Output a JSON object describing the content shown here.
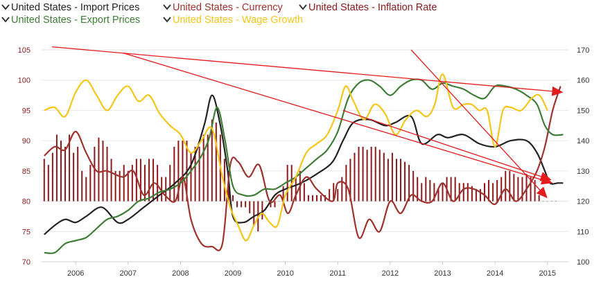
{
  "colors": {
    "import": "#222222",
    "currency": "#a0322e",
    "inflation": "#8b1a1a",
    "export": "#3e7d36",
    "wage": "#f5c518",
    "arrow": "#e41a1c",
    "axis_text_left": "#8b1a1a",
    "axis_text": "#333333",
    "grid": "#e6e6e6"
  },
  "legend": [
    {
      "key": "import",
      "label": "United States - Import Prices",
      "icon": "chevron-down-icon"
    },
    {
      "key": "currency",
      "label": "United States - Currency",
      "icon": "chevron-down-icon"
    },
    {
      "key": "inflation",
      "label": "United States - Inflation Rate",
      "icon": "chevron-down-icon"
    },
    {
      "key": "export",
      "label": "United States - Export Prices",
      "icon": "chevron-down-icon"
    },
    {
      "key": "wage",
      "label": "United States - Wage Growth",
      "icon": "chevron-down-icon"
    }
  ],
  "chart_data": {
    "type": "line",
    "grid": true,
    "legend_position": "top-left",
    "x_range": [
      2005.35,
      2015.4
    ],
    "x_ticks": [
      "2006",
      "2007",
      "2008",
      "2009",
      "2010",
      "2011",
      "2012",
      "2013",
      "2014",
      "2015"
    ],
    "y_left": {
      "range": [
        70,
        105
      ],
      "ticks": [
        "70",
        "75",
        "80",
        "85",
        "90",
        "95",
        "100",
        "105"
      ]
    },
    "y_right": {
      "range": [
        100,
        170
      ],
      "ticks": [
        "100",
        "110",
        "120",
        "130",
        "140",
        "150",
        "160",
        "170"
      ]
    },
    "series": [
      {
        "name": "United States - Import Prices",
        "key": "import",
        "axis": "right",
        "type": "line",
        "x": [
          2005.4,
          2005.6,
          2005.8,
          2006.0,
          2006.2,
          2006.5,
          2006.8,
          2007.0,
          2007.3,
          2007.6,
          2007.9,
          2008.2,
          2008.45,
          2008.6,
          2008.75,
          2008.9,
          2009.0,
          2009.2,
          2009.4,
          2009.6,
          2009.8,
          2010.0,
          2010.3,
          2010.6,
          2010.9,
          2011.1,
          2011.3,
          2011.6,
          2011.9,
          2012.1,
          2012.4,
          2012.6,
          2012.9,
          2013.1,
          2013.4,
          2013.7,
          2014.0,
          2014.3,
          2014.6,
          2014.8,
          2014.95,
          2015.05,
          2015.2,
          2015.3
        ],
        "y": [
          109,
          112,
          114,
          113,
          115,
          118,
          113,
          114,
          118,
          122,
          126,
          132,
          145,
          155,
          146,
          130,
          115,
          113,
          115,
          117,
          122,
          124,
          126,
          129,
          133,
          140,
          146,
          147,
          145,
          146,
          148,
          139,
          142,
          141,
          142,
          139,
          138,
          140,
          140,
          136,
          130,
          126,
          126,
          126
        ]
      },
      {
        "name": "United States - Currency",
        "key": "currency",
        "axis": "left",
        "type": "line",
        "x": [
          2005.4,
          2005.6,
          2005.8,
          2006.0,
          2006.2,
          2006.4,
          2006.6,
          2006.9,
          2007.1,
          2007.3,
          2007.5,
          2007.7,
          2007.9,
          2008.05,
          2008.2,
          2008.4,
          2008.6,
          2008.8,
          2008.95,
          2009.1,
          2009.3,
          2009.5,
          2009.7,
          2009.9,
          2010.05,
          2010.2,
          2010.4,
          2010.6,
          2010.9,
          2011.0,
          2011.2,
          2011.4,
          2011.6,
          2011.8,
          2012.0,
          2012.2,
          2012.4,
          2012.6,
          2012.8,
          2013.0,
          2013.2,
          2013.4,
          2013.6,
          2013.8,
          2014.0,
          2014.2,
          2014.4,
          2014.6,
          2014.8,
          2014.95,
          2015.1,
          2015.25
        ],
        "y": [
          87.5,
          89,
          88.5,
          91.5,
          88,
          85,
          85,
          84,
          85,
          81,
          83,
          81,
          80,
          84,
          77,
          73,
          72.5,
          73,
          86,
          86.5,
          84,
          86,
          80,
          81,
          78,
          81,
          84,
          82,
          80,
          83,
          82,
          74,
          77,
          75,
          80,
          78,
          81,
          80,
          80,
          83,
          80,
          82,
          82,
          81,
          79.5,
          82,
          80,
          82,
          85,
          89,
          95,
          99
        ]
      },
      {
        "name": "United States - Inflation Rate",
        "key": "inflation",
        "axis": "left",
        "type": "bar",
        "x": [
          2005.4,
          2005.48,
          2005.56,
          2005.64,
          2005.72,
          2005.8,
          2005.88,
          2005.96,
          2006.04,
          2006.12,
          2006.2,
          2006.28,
          2006.36,
          2006.44,
          2006.52,
          2006.6,
          2006.68,
          2006.76,
          2006.84,
          2006.92,
          2007.0,
          2007.08,
          2007.16,
          2007.24,
          2007.32,
          2007.4,
          2007.48,
          2007.56,
          2007.64,
          2007.72,
          2007.8,
          2007.88,
          2007.96,
          2008.04,
          2008.12,
          2008.2,
          2008.28,
          2008.36,
          2008.44,
          2008.52,
          2008.6,
          2008.68,
          2008.76,
          2008.84,
          2008.92,
          2009.0,
          2009.08,
          2009.16,
          2009.24,
          2009.32,
          2009.4,
          2009.48,
          2009.56,
          2009.64,
          2009.72,
          2009.8,
          2009.88,
          2009.96,
          2010.04,
          2010.12,
          2010.2,
          2010.28,
          2010.36,
          2010.44,
          2010.52,
          2010.6,
          2010.68,
          2010.76,
          2010.84,
          2010.92,
          2011.0,
          2011.08,
          2011.16,
          2011.24,
          2011.32,
          2011.4,
          2011.48,
          2011.56,
          2011.64,
          2011.72,
          2011.8,
          2011.88,
          2011.96,
          2012.04,
          2012.12,
          2012.2,
          2012.28,
          2012.36,
          2012.44,
          2012.52,
          2012.6,
          2012.68,
          2012.76,
          2012.84,
          2012.92,
          2013.0,
          2013.08,
          2013.16,
          2013.24,
          2013.32,
          2013.4,
          2013.48,
          2013.56,
          2013.64,
          2013.72,
          2013.8,
          2013.88,
          2013.96,
          2014.04,
          2014.12,
          2014.2,
          2014.28,
          2014.36,
          2014.44,
          2014.52,
          2014.6,
          2014.68,
          2014.76,
          2014.84,
          2014.92,
          2015.0,
          2015.08,
          2015.16
        ],
        "y": [
          87,
          86,
          88,
          91,
          90,
          89,
          91,
          88,
          89,
          85,
          84,
          86,
          89,
          90.5,
          90,
          89,
          87,
          85,
          85,
          86,
          85,
          86,
          87,
          87,
          86,
          87,
          87,
          86,
          84,
          84,
          86,
          89,
          90,
          90,
          90,
          88,
          89,
          89,
          91,
          91,
          93.5,
          93,
          91,
          87,
          85,
          81,
          79,
          79,
          79,
          78,
          76,
          75,
          77,
          80,
          79,
          79,
          80,
          82.5,
          86,
          86,
          84,
          85,
          83,
          81,
          81,
          81,
          81,
          81,
          82,
          83,
          82,
          84,
          86,
          87,
          88,
          89,
          89,
          88.5,
          89,
          89,
          88.5,
          88,
          87,
          88,
          87,
          87,
          86.5,
          86,
          85,
          84,
          83,
          84,
          83.5,
          83,
          82,
          83,
          84,
          84,
          84,
          83,
          83,
          83,
          82.5,
          82,
          82,
          83,
          83.5,
          83,
          83.5,
          84,
          85,
          85,
          84.5,
          84,
          84,
          84.5,
          84,
          83.5,
          81,
          80,
          80,
          80,
          80
        ]
      },
      {
        "name": "United States - Export Prices",
        "key": "export",
        "axis": "right",
        "type": "line",
        "x": [
          2005.4,
          2005.6,
          2005.8,
          2006.0,
          2006.2,
          2006.4,
          2006.6,
          2006.8,
          2007.0,
          2007.2,
          2007.4,
          2007.6,
          2007.8,
          2008.0,
          2008.2,
          2008.4,
          2008.55,
          2008.7,
          2008.85,
          2009.0,
          2009.2,
          2009.4,
          2009.6,
          2009.8,
          2010.0,
          2010.2,
          2010.4,
          2010.6,
          2010.8,
          2011.0,
          2011.2,
          2011.4,
          2011.6,
          2011.8,
          2012.0,
          2012.2,
          2012.4,
          2012.6,
          2012.8,
          2013.0,
          2013.2,
          2013.4,
          2013.6,
          2013.8,
          2014.0,
          2014.2,
          2014.4,
          2014.6,
          2014.8,
          2014.95,
          2015.1,
          2015.3
        ],
        "y": [
          103,
          103,
          106,
          107,
          108,
          111,
          114,
          115,
          117,
          120,
          121,
          123,
          124,
          126,
          130,
          135,
          141,
          151,
          140,
          125,
          122,
          122,
          124,
          124,
          126,
          128,
          131,
          134,
          137,
          143,
          154,
          159,
          160,
          158,
          155,
          158,
          160,
          160,
          157,
          159,
          158,
          157,
          155,
          154,
          158,
          158,
          157,
          155,
          152,
          145,
          142,
          142
        ]
      },
      {
        "name": "United States - Wage Growth",
        "key": "wage",
        "axis": "right",
        "type": "line",
        "x": [
          2005.4,
          2005.6,
          2005.8,
          2006.0,
          2006.2,
          2006.4,
          2006.6,
          2006.8,
          2007.0,
          2007.2,
          2007.4,
          2007.6,
          2007.8,
          2008.0,
          2008.2,
          2008.4,
          2008.6,
          2008.8,
          2008.95,
          2009.1,
          2009.25,
          2009.4,
          2009.55,
          2009.7,
          2009.85,
          2010.0,
          2010.2,
          2010.4,
          2010.6,
          2010.8,
          2011.0,
          2011.15,
          2011.3,
          2011.5,
          2011.7,
          2011.9,
          2012.1,
          2012.3,
          2012.5,
          2012.7,
          2012.85,
          2013.0,
          2013.2,
          2013.4,
          2013.55,
          2013.7,
          2013.85,
          2014.0,
          2014.15,
          2014.3,
          2014.5,
          2014.7,
          2014.85,
          2015.0
        ],
        "y": [
          150,
          151,
          148,
          156,
          160,
          155,
          150,
          155,
          158,
          153,
          155,
          149,
          145,
          142,
          136,
          140,
          144,
          128,
          118,
          112,
          107,
          112,
          116,
          113,
          112,
          122,
          128,
          136,
          139,
          142,
          150,
          158,
          153,
          147,
          152,
          149,
          142,
          147,
          150,
          148,
          152,
          162,
          151,
          152,
          152,
          150,
          150,
          138,
          150,
          151,
          150,
          154,
          155,
          150
        ]
      }
    ],
    "annotations": [
      {
        "type": "arrow",
        "from": [
          2005.55,
          171
        ],
        "to": [
          2015.3,
          156
        ]
      },
      {
        "type": "arrow",
        "from": [
          2006.9,
          169
        ],
        "to": [
          2015.1,
          126
        ]
      },
      {
        "type": "arrow",
        "from": [
          2012.4,
          170
        ],
        "to": [
          2015.0,
          121
        ]
      },
      {
        "type": "arrow",
        "from": [
          2011.1,
          150
        ],
        "to": [
          2015.08,
          127
        ]
      }
    ]
  }
}
